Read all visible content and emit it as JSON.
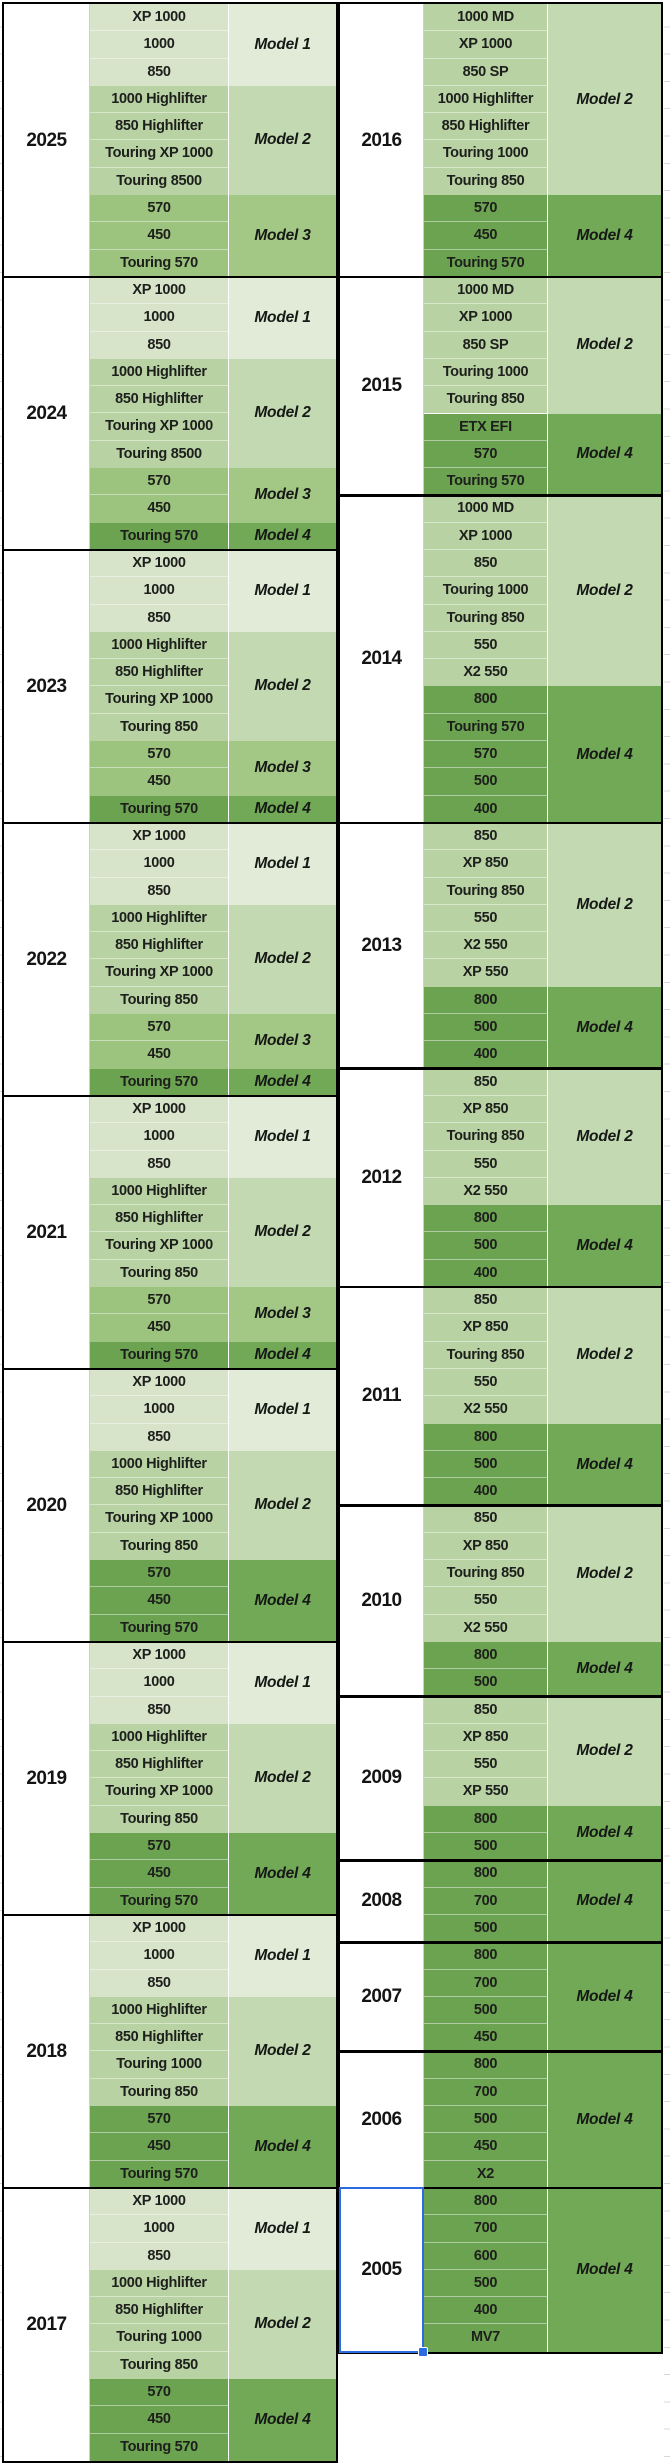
{
  "sheet": {
    "selection_year": "2005",
    "colors": {
      "model1_names": "#d8e4ca",
      "model1_label": "#e1ebd7",
      "model2_names": "#b8d2a3",
      "model2_label": "#c2d9b1",
      "model3_names": "#9dc47e",
      "model3_label": "#a3c785",
      "model4_names": "#6ca350",
      "model4_label": "#71a956",
      "block_border": "#000000",
      "grid_line": "#d9d9d9",
      "selection_blue": "#2c6ce0"
    }
  },
  "tables": [
    {
      "id": "left",
      "blocks": [
        {
          "year": "2025",
          "sections": [
            {
              "label": "Model 1",
              "tone": "model1",
              "models": [
                "XP 1000",
                "1000",
                "850"
              ]
            },
            {
              "label": "Model 2",
              "tone": "model2",
              "models": [
                "1000 Highlifter",
                "850 Highlifter",
                "Touring XP 1000",
                "Touring 8500"
              ]
            },
            {
              "label": "Model 3",
              "tone": "model3",
              "models": [
                "570",
                "450",
                "Touring 570"
              ]
            }
          ]
        },
        {
          "year": "2024",
          "sections": [
            {
              "label": "Model 1",
              "tone": "model1",
              "models": [
                "XP 1000",
                "1000",
                "850"
              ]
            },
            {
              "label": "Model 2",
              "tone": "model2",
              "models": [
                "1000 Highlifter",
                "850 Highlifter",
                "Touring XP 1000",
                "Touring 8500"
              ]
            },
            {
              "label": "Model 3",
              "tone": "model3",
              "models": [
                "570",
                "450"
              ]
            },
            {
              "label": "Model 4",
              "tone": "model4",
              "models": [
                "Touring 570"
              ]
            }
          ]
        },
        {
          "year": "2023",
          "sections": [
            {
              "label": "Model 1",
              "tone": "model1",
              "models": [
                "XP 1000",
                "1000",
                "850"
              ]
            },
            {
              "label": "Model 2",
              "tone": "model2",
              "models": [
                "1000 Highlifter",
                "850 Highlifter",
                "Touring XP 1000",
                "Touring 850"
              ]
            },
            {
              "label": "Model 3",
              "tone": "model3",
              "models": [
                "570",
                "450"
              ]
            },
            {
              "label": "Model 4",
              "tone": "model4",
              "models": [
                "Touring 570"
              ]
            }
          ]
        },
        {
          "year": "2022",
          "sections": [
            {
              "label": "Model 1",
              "tone": "model1",
              "models": [
                "XP 1000",
                "1000",
                "850"
              ]
            },
            {
              "label": "Model 2",
              "tone": "model2",
              "models": [
                "1000 Highlifter",
                "850 Highlifter",
                "Touring XP 1000",
                "Touring 850"
              ]
            },
            {
              "label": "Model 3",
              "tone": "model3",
              "models": [
                "570",
                "450"
              ]
            },
            {
              "label": "Model 4",
              "tone": "model4",
              "models": [
                "Touring 570"
              ]
            }
          ]
        },
        {
          "year": "2021",
          "sections": [
            {
              "label": "Model 1",
              "tone": "model1",
              "models": [
                "XP 1000",
                "1000",
                "850"
              ]
            },
            {
              "label": "Model 2",
              "tone": "model2",
              "models": [
                "1000 Highlifter",
                "850 Highlifter",
                "Touring XP 1000",
                "Touring 850"
              ]
            },
            {
              "label": "Model 3",
              "tone": "model3",
              "models": [
                "570",
                "450"
              ]
            },
            {
              "label": "Model 4",
              "tone": "model4",
              "models": [
                "Touring 570"
              ]
            }
          ]
        },
        {
          "year": "2020",
          "sections": [
            {
              "label": "Model 1",
              "tone": "model1",
              "models": [
                "XP 1000",
                "1000",
                "850"
              ]
            },
            {
              "label": "Model 2",
              "tone": "model2",
              "models": [
                "1000 Highlifter",
                "850 Highlifter",
                "Touring XP 1000",
                "Touring 850"
              ]
            },
            {
              "label": "Model 4",
              "tone": "model4",
              "models": [
                "570",
                "450",
                "Touring 570"
              ]
            }
          ]
        },
        {
          "year": "2019",
          "sections": [
            {
              "label": "Model 1",
              "tone": "model1",
              "models": [
                "XP 1000",
                "1000",
                "850"
              ]
            },
            {
              "label": "Model 2",
              "tone": "model2",
              "models": [
                "1000 Highlifter",
                "850 Highlifter",
                "Touring XP 1000",
                "Touring 850"
              ]
            },
            {
              "label": "Model 4",
              "tone": "model4",
              "models": [
                "570",
                "450",
                "Touring 570"
              ]
            }
          ]
        },
        {
          "year": "2018",
          "sections": [
            {
              "label": "Model 1",
              "tone": "model1",
              "models": [
                "XP 1000",
                "1000",
                "850"
              ]
            },
            {
              "label": "Model 2",
              "tone": "model2",
              "models": [
                "1000 Highlifter",
                "850 Highlifter",
                "Touring 1000",
                "Touring 850"
              ]
            },
            {
              "label": "Model 4",
              "tone": "model4",
              "models": [
                "570",
                "450",
                "Touring 570"
              ]
            }
          ]
        },
        {
          "year": "2017",
          "sections": [
            {
              "label": "Model 1",
              "tone": "model1",
              "models": [
                "XP 1000",
                "1000",
                "850"
              ]
            },
            {
              "label": "Model 2",
              "tone": "model2",
              "models": [
                "1000 Highlifter",
                "850 Highlifter",
                "Touring 1000",
                "Touring 850"
              ]
            },
            {
              "label": "Model 4",
              "tone": "model4",
              "models": [
                "570",
                "450",
                "Touring 570"
              ]
            }
          ]
        }
      ]
    },
    {
      "id": "right",
      "blocks": [
        {
          "year": "2016",
          "sections": [
            {
              "label": "Model 2",
              "tone": "model2",
              "models": [
                "1000 MD",
                "XP 1000",
                "850 SP",
                "1000 Highlifter",
                "850 Highlifter",
                "Touring 1000",
                "Touring 850"
              ]
            },
            {
              "label": "Model 4",
              "tone": "model4",
              "models": [
                "570",
                "450",
                "Touring 570"
              ]
            }
          ]
        },
        {
          "year": "2015",
          "sections": [
            {
              "label": "Model 2",
              "tone": "model2",
              "models": [
                "1000 MD",
                "XP 1000",
                "850 SP",
                "Touring 1000",
                "Touring 850"
              ]
            },
            {
              "label": "Model 4",
              "tone": "model4",
              "models": [
                "ETX EFI",
                "570",
                "Touring 570"
              ]
            }
          ]
        },
        {
          "year": "2014",
          "sections": [
            {
              "label": "Model 2",
              "tone": "model2",
              "models": [
                "1000 MD",
                "XP 1000",
                "850",
                "Touring 1000",
                "Touring 850",
                "550",
                "X2 550"
              ]
            },
            {
              "label": "Model 4",
              "tone": "model4",
              "models": [
                "800",
                "Touring 570",
                "570",
                "500",
                "400"
              ]
            }
          ]
        },
        {
          "year": "2013",
          "sections": [
            {
              "label": "Model 2",
              "tone": "model2",
              "models": [
                "850",
                "XP 850",
                "Touring 850",
                "550",
                "X2 550",
                "XP 550"
              ]
            },
            {
              "label": "Model 4",
              "tone": "model4",
              "models": [
                "800",
                "500",
                "400"
              ]
            }
          ]
        },
        {
          "year": "2012",
          "sections": [
            {
              "label": "Model 2",
              "tone": "model2",
              "models": [
                "850",
                "XP 850",
                "Touring 850",
                "550",
                "X2 550"
              ]
            },
            {
              "label": "Model 4",
              "tone": "model4",
              "models": [
                "800",
                "500",
                "400"
              ]
            }
          ]
        },
        {
          "year": "2011",
          "sections": [
            {
              "label": "Model 2",
              "tone": "model2",
              "models": [
                "850",
                "XP 850",
                "Touring 850",
                "550",
                "X2 550"
              ]
            },
            {
              "label": "Model 4",
              "tone": "model4",
              "models": [
                "800",
                "500",
                "400"
              ]
            }
          ]
        },
        {
          "year": "2010",
          "sections": [
            {
              "label": "Model 2",
              "tone": "model2",
              "models": [
                "850",
                "XP 850",
                "Touring 850",
                "550",
                "X2 550"
              ]
            },
            {
              "label": "Model 4",
              "tone": "model4",
              "models": [
                "800",
                "500"
              ]
            }
          ]
        },
        {
          "year": "2009",
          "sections": [
            {
              "label": "Model 2",
              "tone": "model2",
              "models": [
                "850",
                "XP 850",
                "550",
                "XP 550"
              ]
            },
            {
              "label": "Model 4",
              "tone": "model4",
              "models": [
                "800",
                "500"
              ]
            }
          ]
        },
        {
          "year": "2008",
          "sections": [
            {
              "label": "Model 4",
              "tone": "model4",
              "models": [
                "800",
                "700",
                "500"
              ]
            }
          ]
        },
        {
          "year": "2007",
          "sections": [
            {
              "label": "Model 4",
              "tone": "model4",
              "models": [
                "800",
                "700",
                "500",
                "450"
              ]
            }
          ]
        },
        {
          "year": "2006",
          "sections": [
            {
              "label": "Model 4",
              "tone": "model4",
              "models": [
                "800",
                "700",
                "500",
                "450",
                "X2"
              ]
            }
          ]
        },
        {
          "year": "2005",
          "sections": [
            {
              "label": "Model 4",
              "tone": "model4",
              "models": [
                "800",
                "700",
                "600",
                "500",
                "400",
                "MV7"
              ]
            }
          ]
        }
      ]
    }
  ]
}
